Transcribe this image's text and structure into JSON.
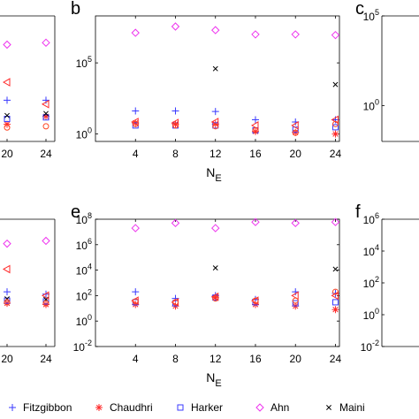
{
  "chart_data": [
    {
      "id": "a",
      "type": "scatter",
      "panel_label": "",
      "partial": true,
      "x_ticks": [
        "20",
        "24"
      ],
      "x": [
        20,
        24
      ],
      "ylog": true,
      "y_ticks": [],
      "ylim": [
        0.1,
        1000000
      ],
      "xlabel": "",
      "series": [
        {
          "key": "fitzgibbon",
          "values": [
            20,
            20
          ]
        },
        {
          "key": "chaudhri",
          "values": [
            0.9,
            2.5
          ]
        },
        {
          "key": "harker",
          "values": [
            1.8,
            2.2
          ]
        },
        {
          "key": "ahn",
          "values": [
            25000,
            32000
          ]
        },
        {
          "key": "maini",
          "values": [
            2.8,
            3.6
          ]
        },
        {
          "key": "red_triangle",
          "values": [
            200,
            12
          ]
        },
        {
          "key": "circle",
          "values": [
            0.6,
            0.7
          ]
        }
      ]
    },
    {
      "id": "b",
      "type": "scatter",
      "panel_label": "b",
      "x_ticks": [
        "4",
        "8",
        "12",
        "16",
        "20",
        "24"
      ],
      "x": [
        4,
        8,
        12,
        16,
        20,
        24
      ],
      "xlim": [
        0,
        24.4
      ],
      "ylog": true,
      "y_ticks": [
        "10^0",
        "10^5"
      ],
      "y_tick_values": [
        1,
        100000
      ],
      "ylim": [
        0.3,
        200000000
      ],
      "xlabel_main": "N",
      "xlabel_sub": "E",
      "series": [
        {
          "key": "fitzgibbon",
          "values": [
            42,
            42,
            38,
            10,
            7,
            10
          ]
        },
        {
          "key": "chaudhri",
          "values": [
            6,
            5,
            5,
            1.5,
            1.3,
            1
          ]
        },
        {
          "key": "harker",
          "values": [
            4,
            4,
            4,
            1.8,
            2,
            3
          ]
        },
        {
          "key": "ahn",
          "values": [
            13000000,
            36000000,
            20000000,
            10000000,
            10000000,
            9000000
          ]
        },
        {
          "key": "maini",
          "values": [
            null,
            null,
            39000,
            null,
            null,
            3000
          ]
        },
        {
          "key": "red_triangle",
          "values": [
            7,
            6,
            7,
            4,
            4,
            10
          ]
        },
        {
          "key": "circle",
          "values": [
            5,
            4,
            3.5,
            1.8,
            1.2,
            5
          ]
        }
      ]
    },
    {
      "id": "c",
      "type": "scatter",
      "panel_label": "c",
      "partial": true,
      "ylog": true,
      "y_ticks": [
        "10^0",
        "10^5"
      ],
      "y_tick_values": [
        1,
        100000
      ],
      "ylim": [
        0.01,
        100000
      ],
      "series": []
    },
    {
      "id": "d",
      "type": "scatter",
      "panel_label": "",
      "partial": true,
      "x_ticks": [
        "20",
        "24"
      ],
      "x": [
        20,
        24
      ],
      "ylog": true,
      "y_ticks": [],
      "ylim": [
        0.01,
        100000000
      ],
      "xlabel": "",
      "series": [
        {
          "key": "fitzgibbon",
          "values": [
            200,
            130
          ]
        },
        {
          "key": "chaudhri",
          "values": [
            25,
            20
          ]
        },
        {
          "key": "harker",
          "values": [
            40,
            35
          ]
        },
        {
          "key": "ahn",
          "values": [
            1200000,
            2000000
          ]
        },
        {
          "key": "maini",
          "values": [
            55,
            50
          ]
        },
        {
          "key": "red_triangle",
          "values": [
            12000,
            100
          ]
        },
        {
          "key": "circle",
          "values": [
            30,
            25
          ]
        }
      ]
    },
    {
      "id": "e",
      "type": "scatter",
      "panel_label": "e",
      "x_ticks": [
        "4",
        "8",
        "12",
        "16",
        "20",
        "24"
      ],
      "x": [
        4,
        8,
        12,
        16,
        20,
        24
      ],
      "xlim": [
        0,
        24.4
      ],
      "ylog": true,
      "y_ticks": [
        "10^-2",
        "10^0",
        "10^2",
        "10^4",
        "10^6",
        "10^8"
      ],
      "y_tick_values": [
        0.01,
        1,
        100,
        10000,
        1000000,
        100000000
      ],
      "ylim": [
        0.01,
        100000000
      ],
      "xlabel_main": "N",
      "xlabel_sub": "E",
      "series": [
        {
          "key": "fitzgibbon",
          "values": [
            200,
            60,
            100,
            50,
            200,
            150
          ]
        },
        {
          "key": "chaudhri",
          "values": [
            20,
            15,
            70,
            20,
            15,
            8
          ]
        },
        {
          "key": "harker",
          "values": [
            30,
            25,
            70,
            30,
            25,
            30
          ]
        },
        {
          "key": "ahn",
          "values": [
            20000000,
            50000000,
            20000000,
            60000000,
            50000000,
            60000000
          ]
        },
        {
          "key": "maini",
          "values": [
            null,
            null,
            15000,
            null,
            null,
            12000
          ]
        },
        {
          "key": "red_triangle",
          "values": [
            40,
            30,
            80,
            40,
            100,
            100
          ]
        },
        {
          "key": "circle",
          "values": [
            35,
            30,
            60,
            40,
            40,
            200
          ]
        }
      ]
    },
    {
      "id": "f",
      "type": "scatter",
      "panel_label": "f",
      "partial": true,
      "ylog": true,
      "y_ticks": [
        "10^-2",
        "10^0",
        "10^2",
        "10^4",
        "10^6"
      ],
      "y_tick_values": [
        0.01,
        1,
        100,
        10000,
        1000000
      ],
      "ylim": [
        0.01,
        1000000
      ],
      "series": []
    }
  ],
  "legend": {
    "items": [
      {
        "key": "fitzgibbon",
        "label": "Fitzgibbon",
        "marker": "plus",
        "color": "#3a3aff"
      },
      {
        "key": "chaudhri",
        "label": "Chaudhri",
        "marker": "star",
        "color": "#ff2a2a"
      },
      {
        "key": "harker",
        "label": "Harker",
        "marker": "square",
        "color": "#3a3aff"
      },
      {
        "key": "ahn",
        "label": "Ahn",
        "marker": "diamond",
        "color": "#ee33ee"
      },
      {
        "key": "maini",
        "label": "Maini",
        "marker": "x",
        "color": "#000000"
      }
    ]
  },
  "series_styles": {
    "fitzgibbon": {
      "marker": "plus",
      "color": "#3a3aff"
    },
    "chaudhri": {
      "marker": "star",
      "color": "#ff2a2a"
    },
    "harker": {
      "marker": "square",
      "color": "#3a3aff"
    },
    "ahn": {
      "marker": "diamond",
      "color": "#ee33ee"
    },
    "maini": {
      "marker": "x",
      "color": "#000000"
    },
    "red_triangle": {
      "marker": "triangle-left",
      "color": "#ff2a2a"
    },
    "circle": {
      "marker": "circle",
      "color": "#ff4422"
    }
  }
}
